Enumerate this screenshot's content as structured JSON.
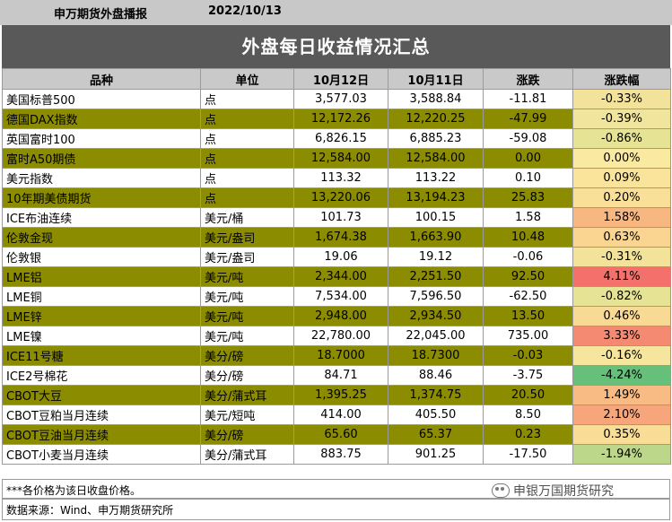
{
  "header": {
    "org": "申万期货外盘播报",
    "date": "2022/10/13"
  },
  "banner": {
    "title": "外盘每日收益情况汇总"
  },
  "columns": [
    "品种",
    "单位",
    "10月12日",
    "10月11日",
    "涨跌",
    "涨跌幅"
  ],
  "rows": [
    {
      "name": "美国标普500",
      "unit": "点",
      "d12": "3,577.03",
      "d11": "3,588.84",
      "chg": "-11.81",
      "pct": "-0.33%",
      "pct_color": "#f3e39a",
      "highlight": false
    },
    {
      "name": "德国DAX指数",
      "unit": "点",
      "d12": "12,172.26",
      "d11": "12,220.25",
      "chg": "-47.99",
      "pct": "-0.39%",
      "pct_color": "#f1e49c",
      "highlight": true
    },
    {
      "name": "英国富时100",
      "unit": "点",
      "d12": "6,826.15",
      "d11": "6,885.23",
      "chg": "-59.08",
      "pct": "-0.86%",
      "pct_color": "#e6e395",
      "highlight": false
    },
    {
      "name": "富时A50期债",
      "unit": "点",
      "d12": "12,584.00",
      "d11": "12,584.00",
      "chg": "0.00",
      "pct": "0.00%",
      "pct_color": "#fae9a0",
      "highlight": true
    },
    {
      "name": "美元指数",
      "unit": "点",
      "d12": "113.32",
      "d11": "113.22",
      "chg": "0.10",
      "pct": "0.09%",
      "pct_color": "#fae49c",
      "highlight": false
    },
    {
      "name": "10年期美债期货",
      "unit": "点",
      "d12": "13,220.06",
      "d11": "13,194.23",
      "chg": "25.83",
      "pct": "0.20%",
      "pct_color": "#fadf98",
      "highlight": true
    },
    {
      "name": "ICE布油连续",
      "unit": "美元/桶",
      "d12": "101.73",
      "d11": "100.15",
      "chg": "1.58",
      "pct": "1.58%",
      "pct_color": "#f8b780",
      "highlight": false
    },
    {
      "name": "伦敦金现",
      "unit": "美元/盎司",
      "d12": "1,674.38",
      "d11": "1,663.90",
      "chg": "10.48",
      "pct": "0.63%",
      "pct_color": "#f9d591",
      "highlight": true
    },
    {
      "name": "伦敦银",
      "unit": "美元/盎司",
      "d12": "19.06",
      "d11": "19.12",
      "chg": "-0.06",
      "pct": "-0.31%",
      "pct_color": "#f3e39a",
      "highlight": false
    },
    {
      "name": "LME铝",
      "unit": "美元/吨",
      "d12": "2,344.00",
      "d11": "2,251.50",
      "chg": "92.50",
      "pct": "4.11%",
      "pct_color": "#f4716b",
      "highlight": true
    },
    {
      "name": "LME铜",
      "unit": "美元/吨",
      "d12": "7,534.00",
      "d11": "7,596.50",
      "chg": "-62.50",
      "pct": "-0.82%",
      "pct_color": "#e6e395",
      "highlight": false
    },
    {
      "name": "LME锌",
      "unit": "美元/吨",
      "d12": "2,948.00",
      "d11": "2,934.50",
      "chg": "13.50",
      "pct": "0.46%",
      "pct_color": "#f9da94",
      "highlight": true
    },
    {
      "name": "LME镍",
      "unit": "美元/吨",
      "d12": "22,780.00",
      "d11": "22,045.00",
      "chg": "735.00",
      "pct": "3.33%",
      "pct_color": "#f58a72",
      "highlight": false
    },
    {
      "name": "ICE11号糖",
      "unit": "美分/磅",
      "d12": "18.7000",
      "d11": "18.7300",
      "chg": "-0.03",
      "pct": "-0.16%",
      "pct_color": "#f6e69d",
      "highlight": true
    },
    {
      "name": "ICE2号棉花",
      "unit": "美分/磅",
      "d12": "84.71",
      "d11": "88.46",
      "chg": "-3.75",
      "pct": "-4.24%",
      "pct_color": "#66c07a",
      "highlight": false
    },
    {
      "name": "CBOT大豆",
      "unit": "美分/蒲式耳",
      "d12": "1,395.25",
      "d11": "1,374.75",
      "chg": "20.50",
      "pct": "1.49%",
      "pct_color": "#f8bb83",
      "highlight": true
    },
    {
      "name": "CBOT豆粕当月连续",
      "unit": "美元/短吨",
      "d12": "414.00",
      "d11": "405.50",
      "chg": "8.50",
      "pct": "2.10%",
      "pct_color": "#f7a57a",
      "highlight": false
    },
    {
      "name": "CBOT豆油当月连续",
      "unit": "美分/磅",
      "d12": "65.60",
      "d11": "65.37",
      "chg": "0.23",
      "pct": "0.35%",
      "pct_color": "#f9dc95",
      "highlight": true
    },
    {
      "name": "CBOT小麦当月连续",
      "unit": "美分/蒲式耳",
      "d12": "883.75",
      "d11": "901.25",
      "chg": "-17.50",
      "pct": "-1.94%",
      "pct_color": "#bcd78a",
      "highlight": false
    }
  ],
  "notes": {
    "note": "***各价格为该日收盘价格。",
    "source": "数据来源：Wind、申万期货研究所"
  },
  "watermark": {
    "text": "申银万国期货研究",
    "icon": "wechat-icon"
  }
}
